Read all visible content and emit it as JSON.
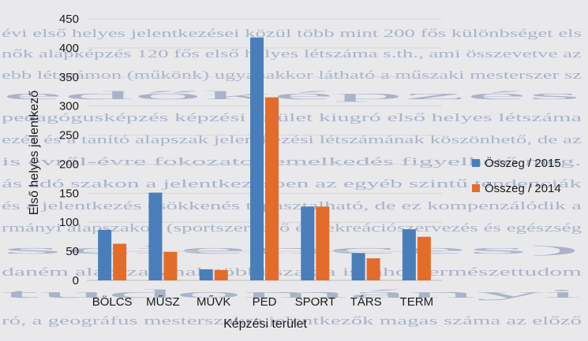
{
  "chart_data": {
    "type": "bar",
    "title": "",
    "xlabel": "Képzési terület",
    "ylabel": "Első helyes jelentkező",
    "ylim": [
      0,
      450
    ],
    "ytick_step": 50,
    "yticks": [
      "0",
      "50",
      "100",
      "150",
      "200",
      "250",
      "300",
      "350",
      "400",
      "450"
    ],
    "grid": true,
    "legend_position": "right",
    "categories": [
      "BÖLCS",
      "MŰSZ",
      "MŰVK",
      "PED",
      "SPORT",
      "TÁRS",
      "TERM"
    ],
    "series": [
      {
        "name": "Összeg / 2015",
        "color": "#4a7ebb",
        "values": [
          87,
          151,
          19,
          418,
          127,
          47,
          88
        ]
      },
      {
        "name": "Összeg / 2014",
        "color": "#e36c2a",
        "values": [
          63,
          49,
          18,
          315,
          127,
          38,
          75
        ]
      }
    ]
  },
  "background_text": [
    "évi első helyes jelentkezései közül több mint 200 fős különbséget els",
    "nők alapképzés 120 fős első helyes létszáma s.th., ami összevetve az",
    "ebb létszámon (műkönk) ugyanakkor látható a műszaki mesterszer sz",
    "edőképzés",
    "pedagógusképzés képzési terület kiugró első helyes létszáma",
    "ezés és a tanító alapszak jelentkezési létszámának köszönhető, de az",
    "is évről-évre fokozatos emelkedés figyelhető meg.",
    "ás adó szakon a jelentkezésben az egyéb szintű tendenciák",
    "és a jelentkezés csökkenés tapasztalható, de ez kompenzálódik a",
    "rmányi alapszakok (sportszervező és rekreációszervezés és egészség",
    "sciences)",
    "daném alapszakának többi szakja is, ahol természettudom",
    "tudományi",
    "ró, a geográfus mesterszakra jelentkezők magas száma az előző"
  ]
}
